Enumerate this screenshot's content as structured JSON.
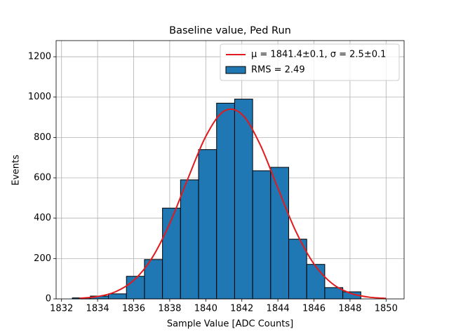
{
  "chart_data": {
    "type": "histogram",
    "title": "Baseline value, Ped Run",
    "xlabel": "Sample Value [ADC Counts]",
    "ylabel": "Events",
    "xlim": [
      1831.7,
      1851.0
    ],
    "ylim": [
      0,
      1280
    ],
    "xticks": [
      1832,
      1834,
      1836,
      1838,
      1840,
      1842,
      1844,
      1846,
      1848,
      1850
    ],
    "yticks": [
      0,
      200,
      400,
      600,
      800,
      1000,
      1200
    ],
    "grid": true,
    "legend": "upper right",
    "series": [
      {
        "name": "μ = 1841.4±0.1, σ = 2.5±0.1",
        "type": "line",
        "color": "#e31a1c",
        "x": [
          1833,
          1834,
          1835,
          1836,
          1837,
          1838,
          1839,
          1840,
          1841,
          1842,
          1843,
          1844,
          1845,
          1846,
          1847,
          1848,
          1849,
          1850
        ],
        "values": [
          3.3,
          11.8,
          35.5,
          91.4,
          200.2,
          373.6,
          594.2,
          805.3,
          930.0,
          915.3,
          767.5,
          548.5,
          334.0,
          173.3,
          76.7,
          28.9,
          9.3,
          2.5
        ]
      },
      {
        "name": "RMS = 2.49",
        "type": "histogram",
        "color": "#1f77b4",
        "bins": [
          1832.6,
          1833.6,
          1834.6,
          1835.6,
          1836.6,
          1837.6,
          1838.6,
          1839.6,
          1840.6,
          1841.6,
          1842.6,
          1843.6,
          1844.6,
          1845.6,
          1846.6,
          1847.6,
          1848.6
        ],
        "values": [
          5,
          14,
          25,
          112,
          195,
          450,
          590,
          740,
          970,
          990,
          635,
          652,
          296,
          171,
          56,
          35
        ]
      }
    ]
  }
}
